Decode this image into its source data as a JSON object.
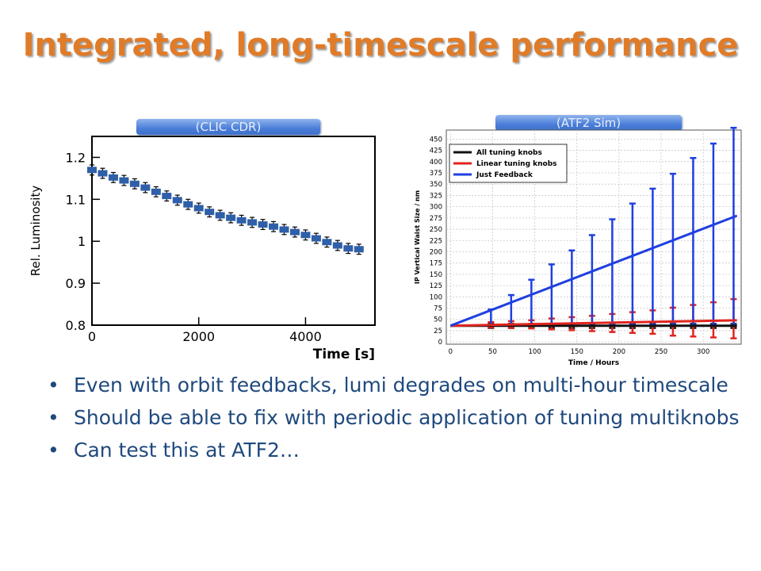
{
  "title": "Integrated, long-timescale performance",
  "labels": {
    "left": "(CLIC CDR)",
    "right": "(ATF2 Sim)"
  },
  "colors": {
    "title": "#e07b28",
    "bullet_text": "#1f497d",
    "pill": "#4a7ed9",
    "left_marker": "#2f5fa8"
  },
  "bullets": [
    "Even with orbit feedbacks, lumi degrades on multi-hour timescale",
    "Should be able to fix with periodic  application of tuning multiknobs",
    "Can test this at ATF2…"
  ],
  "chart_data": [
    {
      "type": "scatter",
      "title": "",
      "xlabel": "Time [s]",
      "ylabel": "Rel. Luminosity",
      "xlim": [
        0,
        5300
      ],
      "ylim": [
        0.8,
        1.25
      ],
      "xticks": [
        0,
        2000,
        4000
      ],
      "yticks": [
        0.8,
        0.9,
        1,
        1.1,
        1.2
      ],
      "ytick_labels": [
        "0.8",
        "0.9",
        "1",
        "1.1",
        "1.2"
      ],
      "grid": false,
      "series": [
        {
          "error_bar": 0.012,
          "x": [
            0,
            200,
            400,
            600,
            800,
            1000,
            1200,
            1400,
            1600,
            1800,
            2000,
            2200,
            2400,
            2600,
            2800,
            3000,
            3200,
            3400,
            3600,
            3800,
            4000,
            4200,
            4400,
            4600,
            4800,
            5000
          ],
          "y": [
            1.17,
            1.162,
            1.152,
            1.145,
            1.137,
            1.128,
            1.118,
            1.108,
            1.098,
            1.088,
            1.079,
            1.07,
            1.062,
            1.056,
            1.05,
            1.045,
            1.04,
            1.035,
            1.028,
            1.022,
            1.015,
            1.007,
            0.998,
            0.99,
            0.983,
            0.981
          ]
        }
      ]
    },
    {
      "type": "line",
      "title": "",
      "xlabel": "Time / Hours",
      "ylabel": "IP Vertical Waist Size / nm",
      "xlim": [
        -5,
        345
      ],
      "ylim": [
        -5,
        470
      ],
      "xticks": [
        0,
        50,
        100,
        150,
        200,
        250,
        300
      ],
      "yticks": [
        0,
        25,
        50,
        75,
        100,
        125,
        150,
        175,
        200,
        225,
        250,
        275,
        300,
        325,
        350,
        375,
        400,
        425,
        450
      ],
      "grid": true,
      "legend": "top-left",
      "series": [
        {
          "name": "All tuning knobs",
          "color": "#111111",
          "x": [
            0,
            340
          ],
          "y": [
            36,
            36
          ],
          "errors_x": [
            48,
            72,
            96,
            120,
            144,
            168,
            192,
            216,
            240,
            264,
            288,
            312,
            336
          ],
          "errors_low": [
            31,
            31,
            31,
            31,
            31,
            31,
            31,
            31,
            31,
            31,
            31,
            31,
            31
          ],
          "errors_high": [
            40,
            40,
            40,
            40,
            40,
            40,
            40,
            40,
            40,
            40,
            40,
            40,
            40
          ]
        },
        {
          "name": "Linear tuning knobs",
          "color": "#e0251f",
          "x": [
            0,
            340
          ],
          "y": [
            36,
            48
          ],
          "errors_x": [
            48,
            72,
            96,
            120,
            144,
            168,
            192,
            216,
            240,
            264,
            288,
            312,
            336
          ],
          "errors_low": [
            32,
            31,
            30,
            28,
            26,
            24,
            22,
            20,
            18,
            14,
            12,
            10,
            8
          ],
          "errors_high": [
            44,
            46,
            48,
            52,
            55,
            58,
            62,
            66,
            70,
            76,
            82,
            88,
            95
          ]
        },
        {
          "name": "Just Feedback",
          "color": "#1f3fe0",
          "x": [
            0,
            340
          ],
          "y": [
            36,
            280
          ],
          "errors_x": [
            48,
            72,
            96,
            120,
            144,
            168,
            192,
            216,
            240,
            264,
            288,
            312,
            336
          ],
          "errors_low": [
            38,
            38,
            38,
            38,
            38,
            38,
            38,
            38,
            38,
            38,
            38,
            38,
            38
          ],
          "errors_high": [
            72,
            104,
            138,
            172,
            203,
            237,
            272,
            307,
            340,
            373,
            408,
            440,
            475
          ]
        }
      ]
    }
  ]
}
